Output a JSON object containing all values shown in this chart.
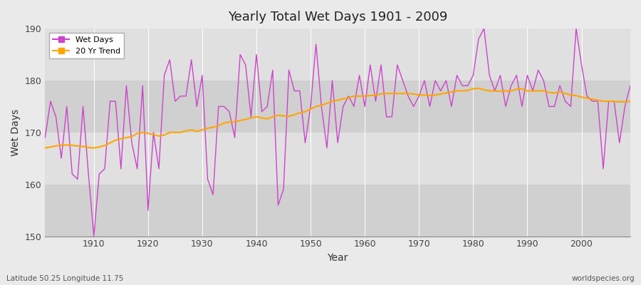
{
  "title": "Yearly Total Wet Days 1901 - 2009",
  "xlabel": "Year",
  "ylabel": "Wet Days",
  "footnote_left": "Latitude 50.25 Longitude 11.75",
  "footnote_right": "worldspecies.org",
  "ylim": [
    150,
    190
  ],
  "yticks": [
    150,
    160,
    170,
    180,
    190
  ],
  "line_color": "#CC44CC",
  "trend_color": "#FFA500",
  "bg_outer": "#EAEAEA",
  "band_dark": "#D0D0D0",
  "band_light": "#E0E0E0",
  "grid_color": "#FFFFFF",
  "years": [
    1901,
    1902,
    1903,
    1904,
    1905,
    1906,
    1907,
    1908,
    1909,
    1910,
    1911,
    1912,
    1913,
    1914,
    1915,
    1916,
    1917,
    1918,
    1919,
    1920,
    1921,
    1922,
    1923,
    1924,
    1925,
    1926,
    1927,
    1928,
    1929,
    1930,
    1931,
    1932,
    1933,
    1934,
    1935,
    1936,
    1937,
    1938,
    1939,
    1940,
    1941,
    1942,
    1943,
    1944,
    1945,
    1946,
    1947,
    1948,
    1949,
    1950,
    1951,
    1952,
    1953,
    1954,
    1955,
    1956,
    1957,
    1958,
    1959,
    1960,
    1961,
    1962,
    1963,
    1964,
    1965,
    1966,
    1967,
    1968,
    1969,
    1970,
    1971,
    1972,
    1973,
    1974,
    1975,
    1976,
    1977,
    1978,
    1979,
    1980,
    1981,
    1982,
    1983,
    1984,
    1985,
    1986,
    1987,
    1988,
    1989,
    1990,
    1991,
    1992,
    1993,
    1994,
    1995,
    1996,
    1997,
    1998,
    1999,
    2000,
    2001,
    2002,
    2003,
    2004,
    2005,
    2006,
    2007,
    2008,
    2009
  ],
  "wet_days": [
    169,
    176,
    173,
    165,
    175,
    162,
    161,
    175,
    162,
    150,
    162,
    163,
    176,
    176,
    163,
    179,
    168,
    163,
    179,
    155,
    170,
    163,
    181,
    184,
    176,
    177,
    177,
    184,
    175,
    181,
    161,
    158,
    175,
    175,
    174,
    169,
    185,
    183,
    173,
    185,
    174,
    175,
    182,
    156,
    159,
    182,
    178,
    178,
    168,
    175,
    187,
    175,
    167,
    180,
    168,
    175,
    177,
    175,
    181,
    175,
    183,
    176,
    183,
    173,
    173,
    183,
    180,
    177,
    175,
    177,
    180,
    175,
    180,
    178,
    180,
    175,
    181,
    179,
    179,
    181,
    188,
    190,
    181,
    178,
    181,
    175,
    179,
    181,
    175,
    181,
    178,
    182,
    180,
    175,
    175,
    179,
    176,
    175,
    190,
    183,
    177,
    176,
    176,
    163,
    176,
    176,
    168,
    175,
    179
  ],
  "trend": [
    167.0,
    167.2,
    167.4,
    167.5,
    167.6,
    167.5,
    167.4,
    167.3,
    167.1,
    167.0,
    167.2,
    167.5,
    168.0,
    168.5,
    168.8,
    169.0,
    169.2,
    169.8,
    170.0,
    169.8,
    169.6,
    169.3,
    169.5,
    170.0,
    170.0,
    170.0,
    170.3,
    170.5,
    170.2,
    170.5,
    170.8,
    171.0,
    171.3,
    171.8,
    172.0,
    172.0,
    172.3,
    172.5,
    172.8,
    173.0,
    172.8,
    172.6,
    173.0,
    173.3,
    173.2,
    173.1,
    173.4,
    173.8,
    174.0,
    174.5,
    175.0,
    175.2,
    175.6,
    176.0,
    176.2,
    176.5,
    176.6,
    177.0,
    177.0,
    177.0,
    177.1,
    177.2,
    177.4,
    177.5,
    177.5,
    177.5,
    177.5,
    177.5,
    177.4,
    177.2,
    177.2,
    177.1,
    177.2,
    177.4,
    177.6,
    177.8,
    178.0,
    178.0,
    178.1,
    178.4,
    178.5,
    178.2,
    178.0,
    178.0,
    177.9,
    178.0,
    178.0,
    178.3,
    178.4,
    178.0,
    178.0,
    178.0,
    178.0,
    177.7,
    177.6,
    177.8,
    177.5,
    177.2,
    177.1,
    176.8,
    176.6,
    176.4,
    176.2,
    176.0,
    176.0,
    176.0,
    175.9,
    175.9,
    176.0
  ]
}
